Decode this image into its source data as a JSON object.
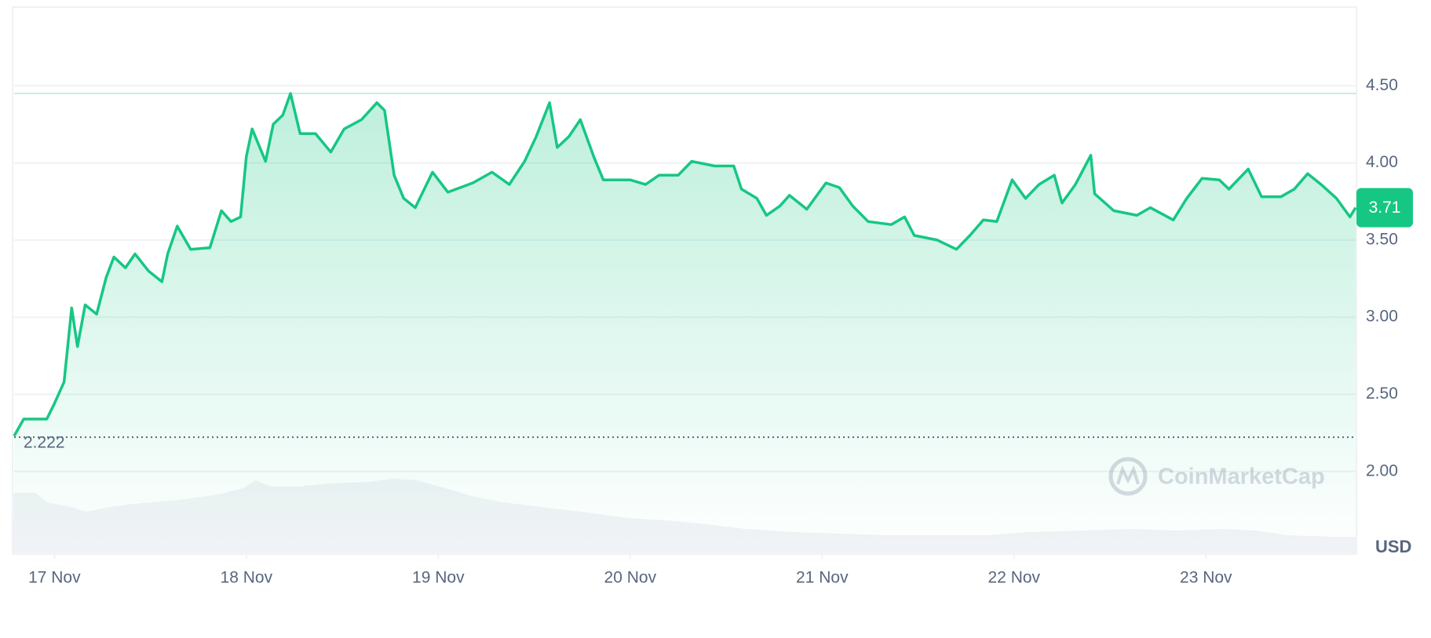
{
  "chart_data": {
    "type": "line",
    "color": "#16c784",
    "x": [
      -0.21,
      -0.16,
      -0.04,
      0,
      0.05,
      0.09,
      0.12,
      0.16,
      0.22,
      0.27,
      0.31,
      0.37,
      0.42,
      0.49,
      0.56,
      0.59,
      0.64,
      0.71,
      0.81,
      0.87,
      0.92,
      0.97,
      1.0,
      1.03,
      1.1,
      1.14,
      1.19,
      1.23,
      1.28,
      1.36,
      1.44,
      1.51,
      1.6,
      1.68,
      1.72,
      1.77,
      1.82,
      1.88,
      1.97,
      2.05,
      2.18,
      2.28,
      2.37,
      2.45,
      2.51,
      2.58,
      2.62,
      2.68,
      2.74,
      2.81,
      2.86,
      3.0,
      3.08,
      3.15,
      3.25,
      3.32,
      3.44,
      3.54,
      3.58,
      3.66,
      3.71,
      3.78,
      3.83,
      3.92,
      4.02,
      4.09,
      4.16,
      4.24,
      4.36,
      4.43,
      4.48,
      4.6,
      4.7,
      4.77,
      4.84,
      4.91,
      4.99,
      5.06,
      5.13,
      5.21,
      5.25,
      5.32,
      5.4,
      5.42,
      5.52,
      5.64,
      5.71,
      5.83,
      5.9,
      5.98,
      6.07,
      6.12,
      6.22,
      6.29,
      6.39,
      6.46,
      6.53,
      6.6,
      6.68,
      6.75,
      6.78
    ],
    "values": [
      2.23,
      2.34,
      2.34,
      2.44,
      2.58,
      3.06,
      2.81,
      3.08,
      3.02,
      3.26,
      3.39,
      3.32,
      3.41,
      3.3,
      3.23,
      3.41,
      3.59,
      3.44,
      3.45,
      3.69,
      3.62,
      3.65,
      4.04,
      4.22,
      4.01,
      4.25,
      4.31,
      4.45,
      4.19,
      4.19,
      4.07,
      4.22,
      4.28,
      4.39,
      4.34,
      3.92,
      3.77,
      3.71,
      3.94,
      3.81,
      3.87,
      3.94,
      3.86,
      4.01,
      4.17,
      4.39,
      4.1,
      4.17,
      4.28,
      4.04,
      3.89,
      3.89,
      3.86,
      3.92,
      3.92,
      4.01,
      3.98,
      3.98,
      3.83,
      3.77,
      3.66,
      3.72,
      3.79,
      3.7,
      3.87,
      3.84,
      3.72,
      3.62,
      3.6,
      3.65,
      3.53,
      3.5,
      3.44,
      3.53,
      3.63,
      3.62,
      3.89,
      3.77,
      3.86,
      3.92,
      3.74,
      3.86,
      4.05,
      3.8,
      3.69,
      3.66,
      3.71,
      3.63,
      3.77,
      3.9,
      3.89,
      3.83,
      3.96,
      3.78,
      3.78,
      3.83,
      3.93,
      3.86,
      3.77,
      3.65,
      3.71
    ],
    "xlim": [
      -0.21,
      6.78
    ],
    "xticks": [
      {
        "value": 0,
        "label": "17 Nov"
      },
      {
        "value": 1,
        "label": "18 Nov"
      },
      {
        "value": 2,
        "label": "19 Nov"
      },
      {
        "value": 3,
        "label": "20 Nov"
      },
      {
        "value": 4,
        "label": "21 Nov"
      },
      {
        "value": 5,
        "label": "22 Nov"
      },
      {
        "value": 6,
        "label": "23 Nov"
      }
    ],
    "ylim": [
      1.465,
      5.01
    ],
    "yticks": [
      {
        "value": 2,
        "label": "2.00"
      },
      {
        "value": 2.5,
        "label": "2.50"
      },
      {
        "value": 3,
        "label": "3.00"
      },
      {
        "value": 3.5,
        "label": "3.50"
      },
      {
        "value": 4,
        "label": "4.00"
      },
      {
        "value": 4.5,
        "label": "4.50"
      }
    ],
    "grid": true,
    "reference_low": 2.222,
    "reference_high": 4.45,
    "current_price": 3.71,
    "currency": "USD",
    "watermark": "CoinMarketCap"
  }
}
